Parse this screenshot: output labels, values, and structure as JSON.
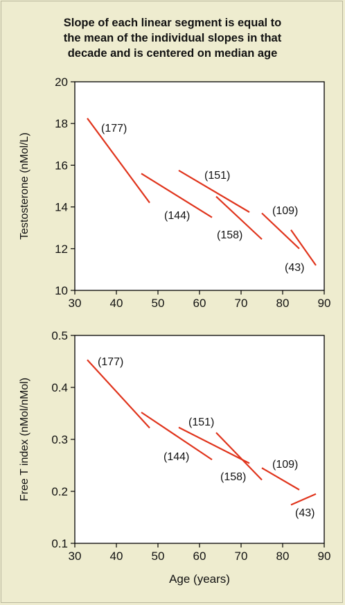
{
  "title_lines": [
    "Slope of each linear segment is equal to",
    "the mean of the individual slopes in that",
    "decade and is centered on median age"
  ],
  "colors": {
    "background": "#eeeccf",
    "plot_area": "#ffffff",
    "segment": "#e0341c"
  },
  "chart_data": [
    {
      "type": "line",
      "ylabel": "Testosterone (nMol/L)",
      "xlabel": "",
      "xlim": [
        30,
        90
      ],
      "ylim": [
        10,
        20
      ],
      "xticks": [
        30,
        40,
        50,
        60,
        70,
        80,
        90
      ],
      "yticks": [
        10,
        12,
        14,
        16,
        18,
        20
      ],
      "grid": false,
      "series": [
        {
          "label": "(177)",
          "x": [
            33,
            48
          ],
          "y": [
            18.25,
            14.2
          ]
        },
        {
          "label": "(144)",
          "x": [
            46,
            63
          ],
          "y": [
            15.6,
            13.5
          ]
        },
        {
          "label": "(151)",
          "x": [
            55,
            72
          ],
          "y": [
            15.75,
            13.75
          ]
        },
        {
          "label": "(158)",
          "x": [
            64,
            75
          ],
          "y": [
            14.5,
            12.45
          ]
        },
        {
          "label": "(109)",
          "x": [
            75,
            84
          ],
          "y": [
            13.7,
            12.0
          ]
        },
        {
          "label": "(43)",
          "x": [
            82,
            88
          ],
          "y": [
            12.9,
            11.2
          ]
        }
      ]
    },
    {
      "type": "line",
      "ylabel": "Free T index (nMol/nMol)",
      "xlabel": "Age (years)",
      "xlim": [
        30,
        90
      ],
      "ylim": [
        0.1,
        0.5
      ],
      "xticks": [
        30,
        40,
        50,
        60,
        70,
        80,
        90
      ],
      "yticks": [
        0.1,
        0.2,
        0.3,
        0.4,
        0.5
      ],
      "grid": false,
      "series": [
        {
          "label": "(177)",
          "x": [
            33,
            48
          ],
          "y": [
            0.453,
            0.322
          ]
        },
        {
          "label": "(144)",
          "x": [
            46,
            63
          ],
          "y": [
            0.352,
            0.261
          ]
        },
        {
          "label": "(151)",
          "x": [
            55,
            72
          ],
          "y": [
            0.323,
            0.254
          ]
        },
        {
          "label": "(158)",
          "x": [
            64,
            75
          ],
          "y": [
            0.313,
            0.222
          ]
        },
        {
          "label": "(109)",
          "x": [
            75,
            84
          ],
          "y": [
            0.245,
            0.203
          ]
        },
        {
          "label": "(43)",
          "x": [
            82,
            88
          ],
          "y": [
            0.174,
            0.195
          ]
        }
      ]
    }
  ]
}
